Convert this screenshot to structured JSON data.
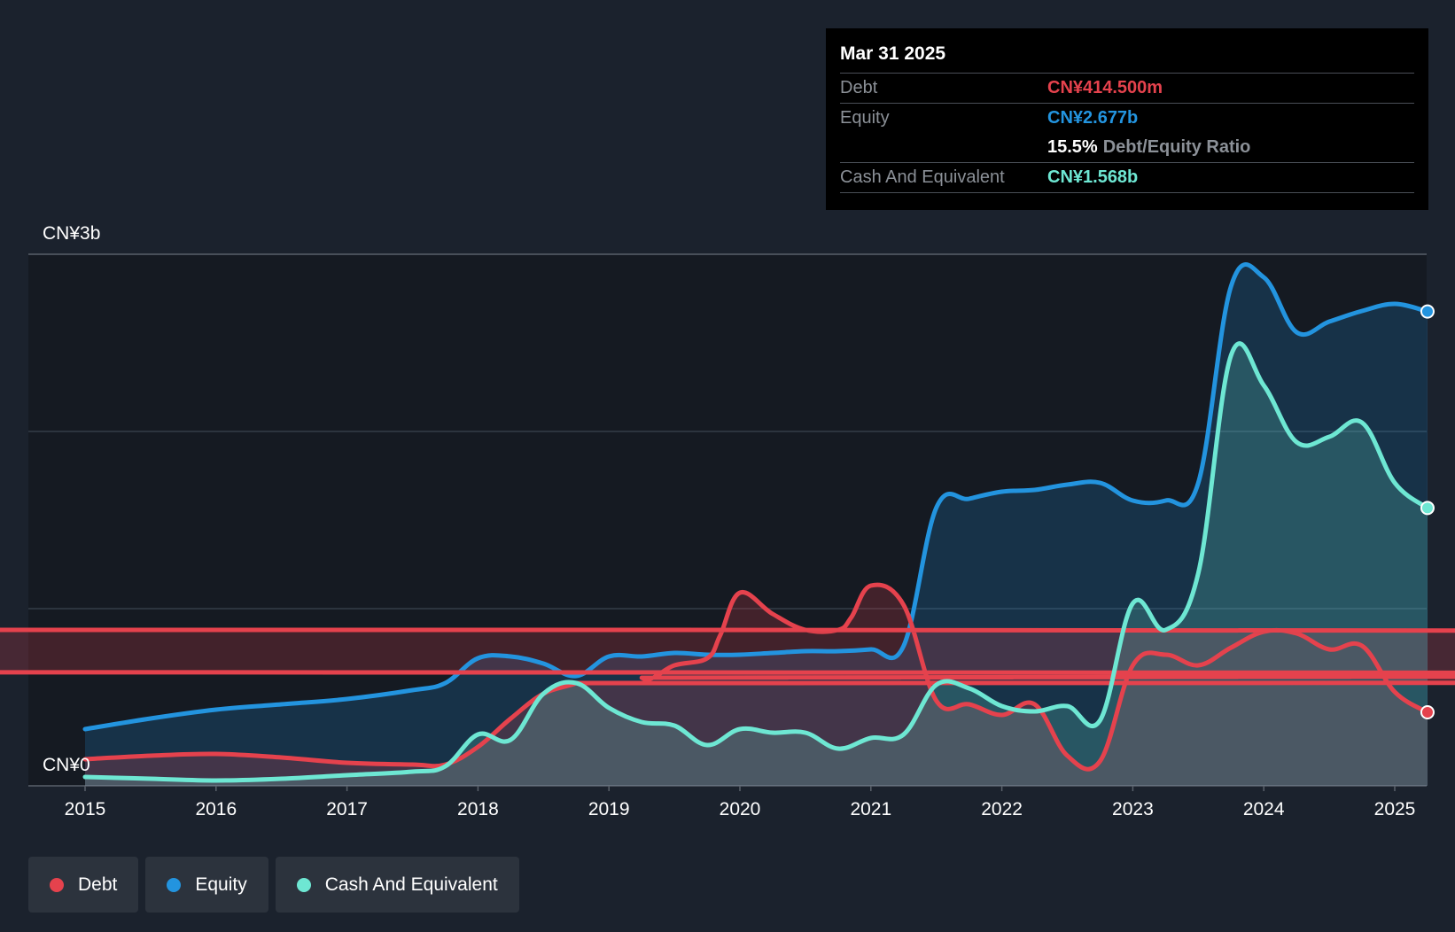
{
  "tooltip": {
    "date": "Mar 31 2025",
    "rows": [
      {
        "label": "Debt",
        "value": "CN¥414.500m"
      },
      {
        "label": "Equity",
        "value": "CN¥2.677b"
      },
      {
        "ratio_value": "15.5%",
        "ratio_label": "Debt/Equity Ratio"
      },
      {
        "label": "Cash And Equivalent",
        "value": "CN¥1.568b"
      }
    ]
  },
  "legend": [
    {
      "label": "Debt",
      "color": "#e5424d"
    },
    {
      "label": "Equity",
      "color": "#2394df"
    },
    {
      "label": "Cash And Equivalent",
      "color": "#6ee7d3"
    }
  ],
  "chart_data": {
    "type": "area",
    "x_ticks": [
      "2015",
      "2016",
      "2017",
      "2018",
      "2019",
      "2020",
      "2021",
      "2022",
      "2023",
      "2024",
      "2025"
    ],
    "y_tick_labels": [
      "CN¥3b",
      "CN¥0"
    ],
    "ylim": [
      0,
      3.0
    ],
    "y_unit": "CN¥ billions",
    "grid": true,
    "series": [
      {
        "name": "Debt",
        "color": "#e5424d",
        "points": [
          [
            2015.0,
            0.15
          ],
          [
            2015.5,
            0.17
          ],
          [
            2016.0,
            0.18
          ],
          [
            2016.5,
            0.16
          ],
          [
            2017.0,
            0.13
          ],
          [
            2017.5,
            0.12
          ],
          [
            2017.75,
            0.12
          ],
          [
            2018.0,
            0.22
          ],
          [
            2018.25,
            0.38
          ],
          [
            2018.5,
            0.52
          ],
          [
            2018.75,
            0.58
          ],
          [
            2018.85,
            0.64
          ],
          [
            219.0,
            0.9
          ],
          [
            2019.05,
            0.88
          ],
          [
            2019.25,
            0.61
          ],
          [
            2019.5,
            0.68
          ],
          [
            2019.75,
            0.72
          ],
          [
            2019.85,
            0.85
          ],
          [
            2020.0,
            1.09
          ],
          [
            2020.25,
            0.97
          ],
          [
            2020.5,
            0.88
          ],
          [
            2020.75,
            0.88
          ],
          [
            2020.85,
            0.95
          ],
          [
            2021.0,
            1.13
          ],
          [
            2021.25,
            1.02
          ],
          [
            2021.5,
            0.48
          ],
          [
            2021.75,
            0.46
          ],
          [
            2022.0,
            0.4
          ],
          [
            2022.25,
            0.46
          ],
          [
            2022.5,
            0.17
          ],
          [
            2022.75,
            0.14
          ],
          [
            2023.0,
            0.68
          ],
          [
            2023.25,
            0.74
          ],
          [
            2023.5,
            0.68
          ],
          [
            2023.75,
            0.78
          ],
          [
            2024.0,
            0.87
          ],
          [
            2024.25,
            0.86
          ],
          [
            2024.5,
            0.77
          ],
          [
            2024.75,
            0.79
          ],
          [
            2025.0,
            0.53
          ],
          [
            2025.25,
            0.415
          ]
        ]
      },
      {
        "name": "Equity",
        "color": "#2394df",
        "points": [
          [
            2015.0,
            0.32
          ],
          [
            2015.5,
            0.38
          ],
          [
            2016.0,
            0.43
          ],
          [
            2016.5,
            0.46
          ],
          [
            2017.0,
            0.49
          ],
          [
            2017.5,
            0.54
          ],
          [
            2017.75,
            0.58
          ],
          [
            2018.0,
            0.72
          ],
          [
            2018.25,
            0.73
          ],
          [
            2018.5,
            0.69
          ],
          [
            2018.75,
            0.62
          ],
          [
            2019.0,
            0.73
          ],
          [
            2019.25,
            0.73
          ],
          [
            2019.5,
            0.75
          ],
          [
            2019.75,
            0.74
          ],
          [
            2020.0,
            0.74
          ],
          [
            2020.25,
            0.75
          ],
          [
            2020.5,
            0.76
          ],
          [
            2020.75,
            0.76
          ],
          [
            2021.0,
            0.77
          ],
          [
            2021.25,
            0.79
          ],
          [
            2021.5,
            1.57
          ],
          [
            2021.75,
            1.62
          ],
          [
            2022.0,
            1.66
          ],
          [
            2022.25,
            1.67
          ],
          [
            2022.5,
            1.7
          ],
          [
            2022.75,
            1.71
          ],
          [
            2023.0,
            1.61
          ],
          [
            2023.25,
            1.61
          ],
          [
            2023.5,
            1.71
          ],
          [
            2023.75,
            2.82
          ],
          [
            2024.0,
            2.87
          ],
          [
            2024.25,
            2.56
          ],
          [
            2024.5,
            2.62
          ],
          [
            2024.75,
            2.68
          ],
          [
            2025.0,
            2.72
          ],
          [
            2025.25,
            2.677
          ]
        ]
      },
      {
        "name": "Cash And Equivalent",
        "color": "#6ee7d3",
        "points": [
          [
            2015.0,
            0.05
          ],
          [
            2015.5,
            0.04
          ],
          [
            2016.0,
            0.03
          ],
          [
            2016.5,
            0.04
          ],
          [
            2017.0,
            0.06
          ],
          [
            2017.5,
            0.08
          ],
          [
            2017.75,
            0.11
          ],
          [
            2018.0,
            0.29
          ],
          [
            2018.25,
            0.26
          ],
          [
            2018.5,
            0.52
          ],
          [
            2018.75,
            0.58
          ],
          [
            2019.0,
            0.44
          ],
          [
            2019.25,
            0.36
          ],
          [
            2019.5,
            0.34
          ],
          [
            2019.75,
            0.23
          ],
          [
            2020.0,
            0.32
          ],
          [
            2020.25,
            0.3
          ],
          [
            2020.5,
            0.3
          ],
          [
            2020.75,
            0.21
          ],
          [
            2021.0,
            0.27
          ],
          [
            2021.25,
            0.29
          ],
          [
            2021.5,
            0.57
          ],
          [
            2021.75,
            0.55
          ],
          [
            2022.0,
            0.45
          ],
          [
            2022.25,
            0.42
          ],
          [
            2022.5,
            0.45
          ],
          [
            2022.75,
            0.37
          ],
          [
            2023.0,
            1.03
          ],
          [
            2023.25,
            0.88
          ],
          [
            2023.5,
            1.2
          ],
          [
            2023.75,
            2.43
          ],
          [
            2024.0,
            2.26
          ],
          [
            2024.25,
            1.94
          ],
          [
            2024.5,
            1.97
          ],
          [
            2024.75,
            2.05
          ],
          [
            2025.0,
            1.71
          ],
          [
            2025.25,
            1.568
          ]
        ]
      }
    ]
  }
}
